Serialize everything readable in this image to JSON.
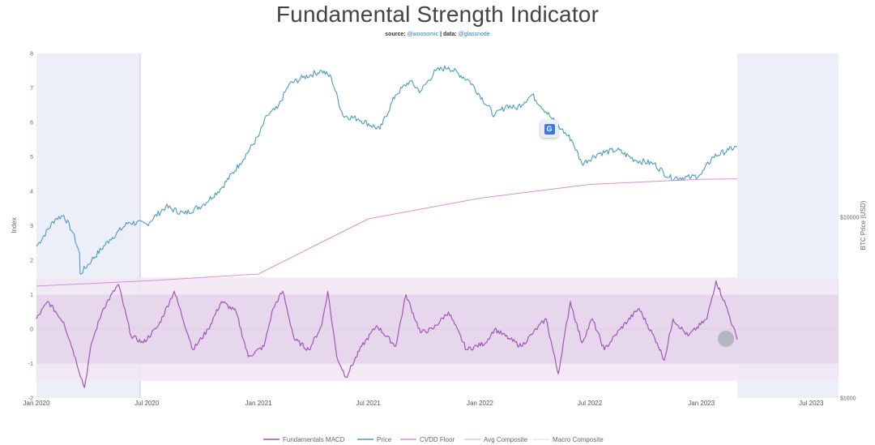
{
  "header": {
    "title": "Fundamental Strength Indicator",
    "source_prefix": "source: ",
    "source_handle": "@woonomic",
    "data_prefix": " | data: ",
    "data_handle": "@glassnode"
  },
  "colors": {
    "price": "#4a9bc4",
    "macd": "#a157b8",
    "cvdd_floor": "#d98fdc",
    "avg_composite": "#e2c6e8",
    "macro_composite": "#e8e8e8",
    "shade": "#eceef8",
    "band_outer": "#f2e6f4",
    "band_inner": "#e4d3ea"
  },
  "chart_data": {
    "type": "line",
    "title": "Fundamental Strength Indicator",
    "ylabel": "Index",
    "y2label": "BTC Price (USD)",
    "x_ticks": [
      "Jan 2020",
      "Jul 2020",
      "Jan 2021",
      "Jul 2021",
      "Jan 2022",
      "Jul 2022",
      "Jan 2023",
      "Jul 2023"
    ],
    "xlim": [
      "2020-01-01",
      "2023-08-15"
    ],
    "ylim": [
      -2,
      8
    ],
    "y_ticks": [
      "8",
      "7",
      "6",
      "5",
      "4",
      "3",
      "2",
      "1",
      "0",
      "-1",
      "-2"
    ],
    "y2_scale": "log",
    "y2_ticks": [
      "$10000",
      "$1000"
    ],
    "legend": [
      "Fundamentals MACD",
      "Price",
      "CVDD Floor",
      "Avg Composite",
      "Macro Composite"
    ],
    "legend_position": "bottom",
    "bands": {
      "outer": [
        -1.5,
        1.5
      ],
      "inner": [
        -1,
        1
      ]
    },
    "shaded_periods": [
      [
        "2020-01-01",
        "2020-06-20"
      ],
      [
        "2023-03-01",
        "2023-08-15"
      ]
    ],
    "series": [
      {
        "name": "Price",
        "axis": "left",
        "x": [
          "2020-01-01",
          "2020-02-01",
          "2020-02-15",
          "2020-03-01",
          "2020-03-12",
          "2020-03-13",
          "2020-04-01",
          "2020-05-01",
          "2020-06-01",
          "2020-07-01",
          "2020-08-01",
          "2020-09-01",
          "2020-10-01",
          "2020-11-01",
          "2020-12-01",
          "2021-01-01",
          "2021-01-15",
          "2021-02-01",
          "2021-02-20",
          "2021-03-15",
          "2021-04-15",
          "2021-05-01",
          "2021-05-20",
          "2021-06-15",
          "2021-07-20",
          "2021-08-15",
          "2021-09-07",
          "2021-09-25",
          "2021-10-20",
          "2021-11-10",
          "2021-12-15",
          "2022-01-25",
          "2022-02-15",
          "2022-03-01",
          "2022-03-28",
          "2022-04-30",
          "2022-05-15",
          "2022-06-01",
          "2022-06-18",
          "2022-07-15",
          "2022-08-15",
          "2022-09-15",
          "2022-10-15",
          "2022-11-09",
          "2022-12-15",
          "2023-01-01",
          "2023-01-20",
          "2023-02-15",
          "2023-03-01"
        ],
        "values": [
          2.4,
          3.2,
          3.3,
          2.8,
          2.2,
          1.6,
          2.0,
          2.6,
          3.1,
          3.05,
          3.55,
          3.35,
          3.6,
          4.1,
          4.8,
          5.6,
          6.2,
          6.4,
          7.1,
          7.3,
          7.5,
          7.3,
          6.2,
          6.1,
          5.8,
          6.8,
          7.2,
          6.9,
          7.5,
          7.6,
          7.2,
          6.2,
          6.5,
          6.4,
          6.8,
          6.1,
          5.8,
          5.5,
          4.8,
          5.1,
          5.2,
          4.9,
          4.8,
          4.4,
          4.4,
          4.5,
          5.0,
          5.2,
          5.3
        ]
      },
      {
        "name": "CVDD Floor",
        "axis": "left",
        "x": [
          "2020-01-01",
          "2020-07-01",
          "2021-01-01",
          "2021-04-01",
          "2021-07-01",
          "2021-10-01",
          "2022-01-01",
          "2022-07-01",
          "2023-01-01",
          "2023-03-01"
        ],
        "values": [
          1.25,
          1.4,
          1.6,
          2.4,
          3.2,
          3.5,
          3.8,
          4.2,
          4.35,
          4.36
        ]
      },
      {
        "name": "Fundamentals MACD",
        "axis": "left",
        "x": [
          "2020-01-01",
          "2020-01-20",
          "2020-02-15",
          "2020-03-01",
          "2020-03-20",
          "2020-04-01",
          "2020-04-20",
          "2020-05-15",
          "2020-06-05",
          "2020-06-25",
          "2020-07-20",
          "2020-08-15",
          "2020-09-15",
          "2020-10-10",
          "2020-11-01",
          "2020-11-25",
          "2020-12-15",
          "2021-01-10",
          "2021-01-25",
          "2021-02-10",
          "2021-03-01",
          "2021-03-25",
          "2021-04-15",
          "2021-04-25",
          "2021-05-10",
          "2021-05-25",
          "2021-06-20",
          "2021-07-15",
          "2021-08-15",
          "2021-09-01",
          "2021-09-25",
          "2021-10-15",
          "2021-11-10",
          "2021-12-10",
          "2022-01-10",
          "2022-01-25",
          "2022-02-20",
          "2022-03-10",
          "2022-03-30",
          "2022-04-20",
          "2022-05-10",
          "2022-05-30",
          "2022-06-18",
          "2022-07-05",
          "2022-07-25",
          "2022-08-20",
          "2022-09-20",
          "2022-10-20",
          "2022-11-01",
          "2022-11-15",
          "2022-12-10",
          "2023-01-10",
          "2023-01-25",
          "2023-02-10",
          "2023-03-01"
        ],
        "values": [
          0.3,
          0.8,
          0.2,
          -0.6,
          -1.7,
          -0.4,
          0.6,
          1.3,
          -0.2,
          -0.4,
          0.1,
          1.1,
          -0.6,
          0.0,
          0.8,
          0.5,
          -0.8,
          -0.5,
          0.6,
          1.1,
          -0.3,
          -0.6,
          0.1,
          1.1,
          -0.8,
          -1.4,
          -0.5,
          0.1,
          -0.5,
          1.0,
          -0.1,
          0.0,
          0.5,
          -0.6,
          -0.4,
          0.0,
          -0.3,
          -0.5,
          -0.1,
          0.3,
          -1.3,
          0.8,
          -0.4,
          0.3,
          -0.6,
          0.0,
          0.6,
          -0.4,
          -0.9,
          0.3,
          -0.2,
          0.3,
          1.4,
          0.7,
          -0.3
        ]
      }
    ]
  }
}
